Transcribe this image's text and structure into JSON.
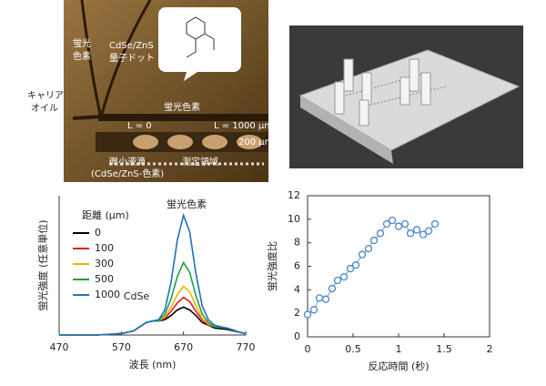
{
  "image_labels": {
    "dye_left": [
      "蛍光",
      "色素"
    ],
    "quantum_dot": [
      "CdSe/ZnS",
      "量子ドット"
    ],
    "carrier_oil": [
      "キャリア",
      "オイル"
    ],
    "dye_channel": "蛍光色素",
    "l0": "L = 0",
    "l1000": "L = 1000 μm",
    "scale": "200 μm",
    "droplet": [
      "微小液滴",
      "(CdSe/ZnS-色素)"
    ],
    "region": "測定領域"
  },
  "chart_data": [
    {
      "type": "line",
      "xlabel": "波長 (nm)",
      "ylabel": "蛍光強度 (任意単位)",
      "legend_title": "距離 (μm)",
      "annotations": [
        "蛍光色素",
        "CdSe"
      ],
      "x": [
        470,
        530,
        570,
        590,
        600,
        610,
        620,
        630,
        640,
        650,
        660,
        670,
        680,
        690,
        700,
        710,
        720,
        740,
        760,
        770
      ],
      "xlim": [
        470,
        770
      ],
      "xticks": [
        470,
        570,
        670,
        770
      ],
      "ylim": [
        0,
        100
      ],
      "series": [
        {
          "name": "0",
          "color": "#000000",
          "values": [
            0,
            0,
            1,
            3,
            6,
            9,
            10,
            10,
            11,
            14,
            18,
            20,
            18,
            14,
            9,
            7,
            5,
            4,
            2,
            1
          ]
        },
        {
          "name": "100",
          "color": "#e02020",
          "values": [
            0,
            0,
            1,
            3,
            6,
            9,
            10,
            10,
            12,
            17,
            23,
            27,
            24,
            17,
            11,
            7,
            6,
            5,
            2,
            1
          ]
        },
        {
          "name": "300",
          "color": "#f0b400",
          "values": [
            0,
            0,
            1,
            3,
            6,
            9,
            10,
            10,
            13,
            20,
            29,
            35,
            31,
            21,
            12,
            8,
            6,
            5,
            2,
            1
          ]
        },
        {
          "name": "500",
          "color": "#20a040",
          "values": [
            0,
            0,
            1,
            3,
            6,
            9,
            10,
            10,
            15,
            26,
            42,
            52,
            45,
            28,
            15,
            9,
            6,
            5,
            2,
            1
          ]
        },
        {
          "name": "1000",
          "color": "#2070c0",
          "values": [
            0,
            0,
            1,
            3,
            6,
            9,
            10,
            11,
            18,
            38,
            68,
            86,
            74,
            44,
            21,
            11,
            7,
            5,
            2,
            1
          ]
        }
      ]
    },
    {
      "type": "line",
      "markers": true,
      "xlabel": "反応時間 (秒)",
      "ylabel": "蛍光強度比",
      "color": "#4a86c8",
      "x": [
        0,
        0.07,
        0.13,
        0.2,
        0.27,
        0.33,
        0.4,
        0.47,
        0.53,
        0.6,
        0.67,
        0.73,
        0.8,
        0.87,
        0.93,
        1.0,
        1.07,
        1.13,
        1.2,
        1.27,
        1.33,
        1.4
      ],
      "values": [
        1.9,
        2.3,
        3.3,
        3.2,
        4.1,
        4.8,
        5.1,
        5.8,
        6.1,
        7.0,
        7.5,
        8.2,
        8.8,
        9.6,
        9.9,
        9.4,
        9.6,
        8.8,
        9.1,
        8.7,
        9.0,
        9.6
      ],
      "xlim": [
        0,
        2
      ],
      "xticks": [
        0,
        0.5,
        1,
        1.5,
        2
      ],
      "ylim": [
        0,
        12
      ],
      "yticks": [
        0,
        2,
        4,
        6,
        8,
        10,
        12
      ]
    }
  ]
}
